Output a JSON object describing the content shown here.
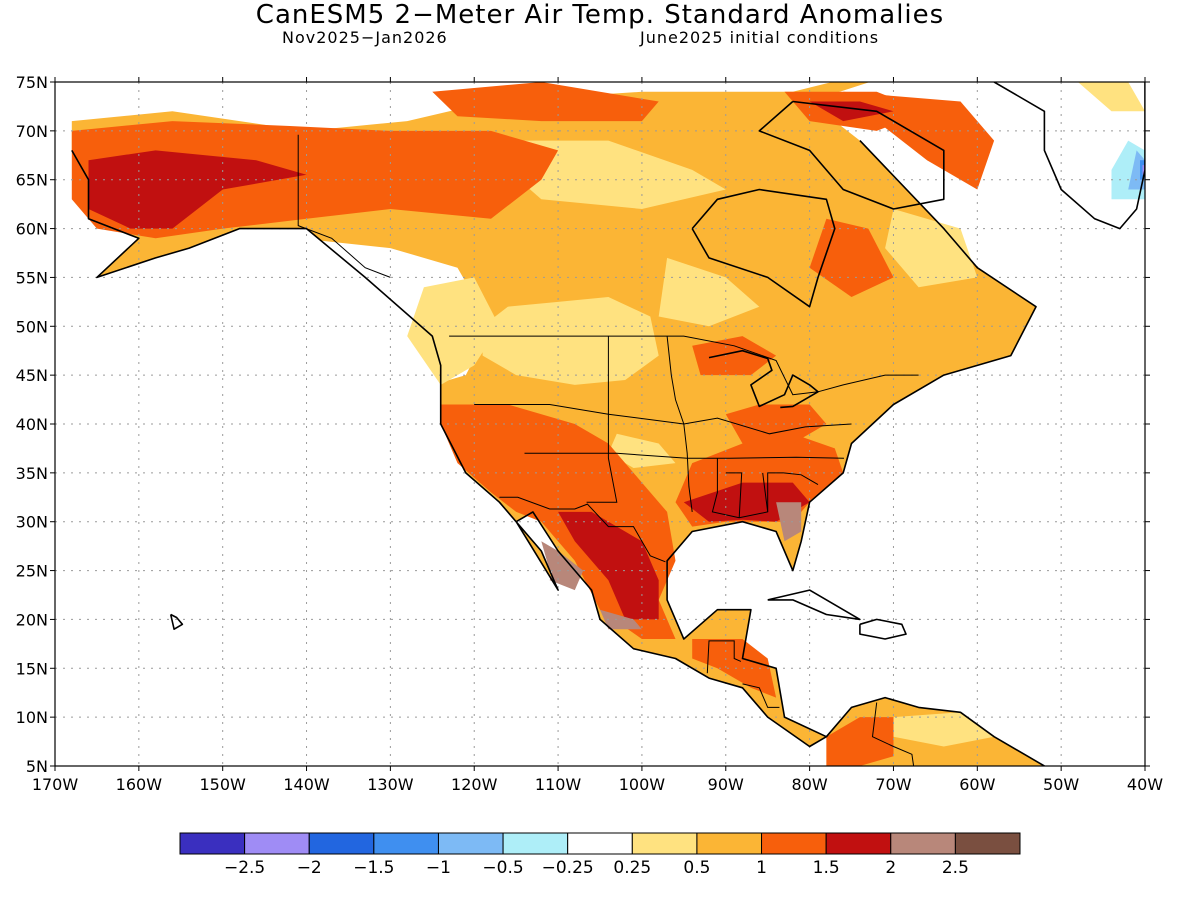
{
  "title": "CanESM5 2−Meter Air Temp. Standard Anomalies",
  "subtitle_left": "Nov2025−Jan2026",
  "subtitle_right": "June2025 initial conditions",
  "map": {
    "lat_labels": [
      "75N",
      "70N",
      "65N",
      "60N",
      "55N",
      "50N",
      "45N",
      "40N",
      "35N",
      "30N",
      "25N",
      "20N",
      "15N",
      "10N",
      "5N"
    ],
    "lon_labels": [
      "170W",
      "160W",
      "150W",
      "140W",
      "130W",
      "120W",
      "110W",
      "100W",
      "90W",
      "80W",
      "70W",
      "60W",
      "50W",
      "40W"
    ],
    "extent": {
      "lon_min": -170,
      "lon_max": -40,
      "lat_min": 5,
      "lat_max": 75
    }
  },
  "legend": {
    "colors": [
      "#3a2fbf",
      "#9f8cf5",
      "#2266e0",
      "#3f8ff0",
      "#7dbaf5",
      "#aeeef8",
      "#ffffff",
      "#ffe280",
      "#fbb535",
      "#f75f0c",
      "#c11010",
      "#b8877a",
      "#7a4f40"
    ],
    "labels": [
      "−2.5",
      "−2",
      "−1.5",
      "−1",
      "−0.5",
      "−0.25",
      "0.25",
      "0.5",
      "1",
      "1.5",
      "2",
      "2.5"
    ]
  },
  "colors": {
    "c05": "#ffe280",
    "c1": "#fbb535",
    "c15": "#f75f0c",
    "c2": "#c11010",
    "c25": "#b8877a",
    "cn05": "#7dbaf5",
    "cn025": "#aeeef8",
    "cn1": "#3f8ff0",
    "cn15": "#2266e0",
    "cn25": "#3a2fbf",
    "cn2": "#9f8cf5"
  }
}
